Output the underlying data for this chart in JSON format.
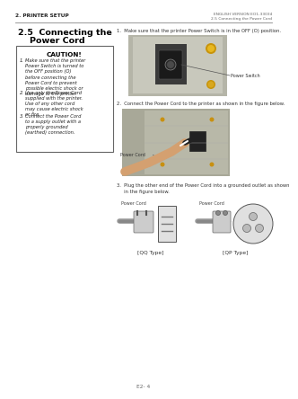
{
  "bg_color": "#ffffff",
  "header_left": "2. PRINTER SETUP",
  "header_right_line1": "ENGLISH VERSION EO1-33034",
  "header_right_line2": "2.5 Connecting the Power Cord",
  "section_title_line1": "2.5  Connecting the",
  "section_title_line2": "Power Cord",
  "caution_title": "CAUTION!",
  "caution_item1": "Make sure that the printer\nPower Switch is turned to\nthe OFF position (O)\nbefore connecting the\nPower Cord to prevent\npossible electric shock or\ndamage to the printer.",
  "caution_item2": "Use only the Power Cord\nsupplied with the printer.\nUse of any other cord\nmay cause electric shock\nor fire.",
  "caution_item3": "Connect the Power Cord\nto a supply outlet with a\nproperly grounded\n(earthed) connection.",
  "step1_text": "1.  Make sure that the printer Power Switch is in the OFF (O) position.",
  "step2_text": "2.  Connect the Power Cord to the printer as shown in the figure below.",
  "step3_text1": "3.  Plug the other end of the Power Cord into a grounded outlet as shown",
  "step3_text2": "     in the figure below.",
  "label_power_switch": "Power Switch",
  "label_power_cord1": "Power Cord",
  "label_power_cord2": "Power Cord",
  "label_power_cord3": "Power Cord",
  "label_qq": "[QQ Type]",
  "label_qp": "[QP Type]",
  "footer_text": "E2- 4",
  "photo1_color": "#b5b5a8",
  "photo1_panel_color": "#c8c8bc",
  "photo1_switch_color": "#2a2a2a",
  "photo2_color": "#a8a898",
  "photo2_panel_color": "#c0bfb0"
}
